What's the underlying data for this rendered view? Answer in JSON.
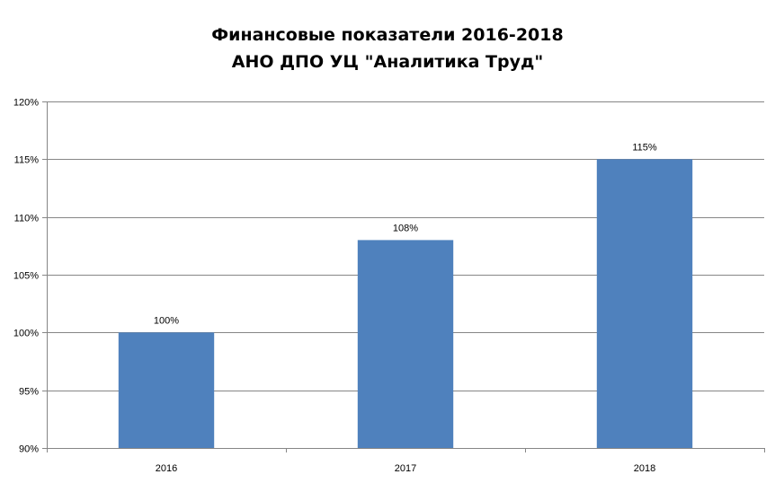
{
  "chart_data": {
    "type": "bar",
    "title": "Финансовые показатели 2016-2018\nАНО ДПО УЦ \"Аналитика Труд\"",
    "title_lines": [
      "Финансовые показатели 2016-2018",
      "АНО ДПО УЦ \"Аналитика Труд\""
    ],
    "categories": [
      "2016",
      "2017",
      "2018"
    ],
    "values": [
      100,
      108,
      115
    ],
    "data_labels": [
      "100%",
      "108%",
      "115%"
    ],
    "ylim": [
      90,
      120
    ],
    "yticks": [
      90,
      95,
      100,
      105,
      110,
      115,
      120
    ],
    "ytick_labels": [
      "90%",
      "95%",
      "100%",
      "105%",
      "110%",
      "115%",
      "120%"
    ],
    "xlabel": "",
    "ylabel": "",
    "grid": true,
    "legend": "none",
    "bar_color": "#4F81BD",
    "grid_color": "#868686"
  }
}
